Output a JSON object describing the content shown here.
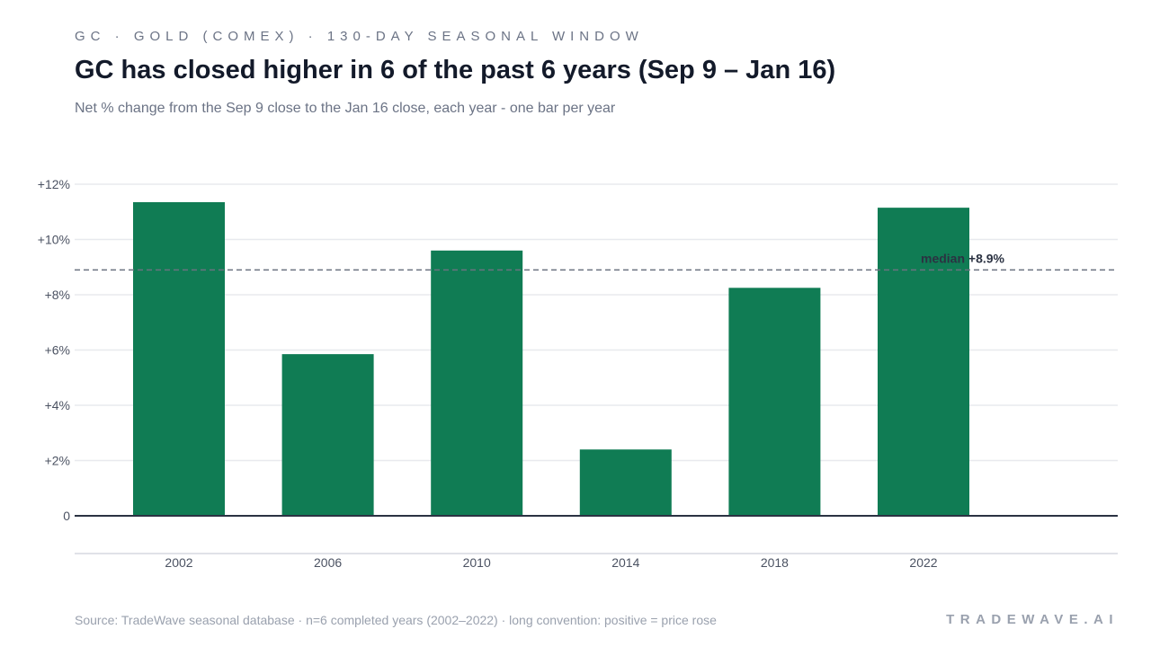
{
  "header": {
    "kicker": "GC · GOLD (COMEX) · 130-DAY SEASONAL WINDOW",
    "title": "GC has closed higher in 6 of the past 6 years (Sep 9 – Jan 16)",
    "subtitle": "Net % change from the Sep 9 close to the Jan 16 close, each year - one bar per year"
  },
  "footer": {
    "source": "Source: TradeWave seasonal database · n=6 completed years (2002–2022) · long convention: positive = price rose",
    "brand": "TRADEWAVE.AI"
  },
  "colors": {
    "bar": "#107c54",
    "grid": "#e8eaee",
    "zero_line": "#2b3242",
    "median_line": "#6b7280",
    "tick_text": "#4b5262",
    "annotation_text": "#2b3242"
  },
  "chart_data": {
    "type": "bar",
    "categories": [
      "2002",
      "2006",
      "2010",
      "2014",
      "2018",
      "2022"
    ],
    "values": [
      11.35,
      5.85,
      9.6,
      2.4,
      8.25,
      11.15
    ],
    "ylim": [
      0,
      12
    ],
    "yticks": [
      0,
      2,
      4,
      6,
      8,
      10,
      12
    ],
    "ytick_labels": [
      "0",
      "+2%",
      "+4%",
      "+6%",
      "+8%",
      "+10%",
      "+12%"
    ],
    "grid": true,
    "median": 8.9,
    "median_label": "median +8.9%",
    "xlabel": "",
    "ylabel": ""
  }
}
